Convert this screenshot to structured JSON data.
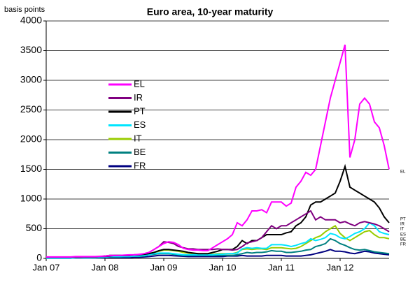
{
  "chart_data": {
    "type": "line",
    "title": "Euro area, 10-year maturity",
    "y_label": "basis points",
    "x": [
      "2007-01",
      "2007-02",
      "2007-03",
      "2007-04",
      "2007-05",
      "2007-06",
      "2007-07",
      "2007-08",
      "2007-09",
      "2007-10",
      "2007-11",
      "2007-12",
      "2008-01",
      "2008-02",
      "2008-03",
      "2008-04",
      "2008-05",
      "2008-06",
      "2008-07",
      "2008-08",
      "2008-09",
      "2008-10",
      "2008-11",
      "2008-12",
      "2009-01",
      "2009-02",
      "2009-03",
      "2009-04",
      "2009-05",
      "2009-06",
      "2009-07",
      "2009-08",
      "2009-09",
      "2009-10",
      "2009-11",
      "2009-12",
      "2010-01",
      "2010-02",
      "2010-03",
      "2010-04",
      "2010-05",
      "2010-06",
      "2010-07",
      "2010-08",
      "2010-09",
      "2010-10",
      "2010-11",
      "2010-12",
      "2011-01",
      "2011-02",
      "2011-03",
      "2011-04",
      "2011-05",
      "2011-06",
      "2011-07",
      "2011-08",
      "2011-09",
      "2011-10",
      "2011-11",
      "2011-12",
      "2012-01",
      "2012-02",
      "2012-03",
      "2012-04",
      "2012-05",
      "2012-06",
      "2012-07",
      "2012-08",
      "2012-09",
      "2012-10",
      "2012-11"
    ],
    "xlim": [
      "2007-01",
      "2012-11"
    ],
    "xticks": [
      {
        "value": "2007-01",
        "label": "Jan 07"
      },
      {
        "value": "2008-01",
        "label": "Jan 08"
      },
      {
        "value": "2009-01",
        "label": "Jan 09"
      },
      {
        "value": "2010-01",
        "label": "Jan 10"
      },
      {
        "value": "2011-01",
        "label": "Jan 11"
      },
      {
        "value": "2012-01",
        "label": "Jan 12"
      }
    ],
    "ylim": [
      0,
      4000
    ],
    "yticks": [
      0,
      500,
      1000,
      1500,
      2000,
      2500,
      3000,
      3500,
      4000
    ],
    "grid": true,
    "series": [
      {
        "name": "EL",
        "color": "#ff00ff",
        "values": [
          25,
          25,
          25,
          25,
          25,
          25,
          30,
          30,
          30,
          30,
          30,
          35,
          40,
          50,
          50,
          50,
          55,
          60,
          60,
          70,
          80,
          100,
          150,
          200,
          250,
          280,
          270,
          230,
          170,
          150,
          140,
          140,
          130,
          130,
          180,
          230,
          280,
          330,
          400,
          600,
          550,
          650,
          800,
          800,
          820,
          770,
          950,
          950,
          950,
          880,
          930,
          1200,
          1300,
          1450,
          1400,
          1500,
          1900,
          2300,
          2700,
          3000,
          3300,
          3600,
          1700,
          2000,
          2600,
          2700,
          2600,
          2300,
          2200,
          1900,
          1500
        ]
      },
      {
        "name": "IR",
        "color": "#800080",
        "values": [
          20,
          20,
          20,
          20,
          20,
          20,
          20,
          20,
          25,
          25,
          25,
          30,
          30,
          40,
          50,
          50,
          50,
          50,
          60,
          60,
          80,
          100,
          150,
          200,
          280,
          270,
          250,
          200,
          180,
          160,
          160,
          150,
          150,
          150,
          150,
          160,
          150,
          150,
          140,
          150,
          200,
          260,
          280,
          300,
          350,
          450,
          550,
          500,
          550,
          550,
          600,
          650,
          700,
          750,
          800,
          650,
          700,
          650,
          650,
          650,
          600,
          620,
          580,
          550,
          600,
          620,
          600,
          580,
          550,
          500,
          450
        ]
      },
      {
        "name": "PT",
        "color": "#000000",
        "values": [
          20,
          20,
          20,
          20,
          20,
          20,
          25,
          25,
          25,
          25,
          25,
          30,
          40,
          50,
          50,
          50,
          50,
          50,
          60,
          60,
          70,
          80,
          100,
          130,
          150,
          150,
          140,
          130,
          120,
          100,
          90,
          80,
          80,
          80,
          100,
          120,
          150,
          150,
          150,
          200,
          300,
          250,
          300,
          300,
          350,
          400,
          400,
          400,
          400,
          430,
          450,
          550,
          600,
          700,
          900,
          950,
          950,
          1000,
          1050,
          1100,
          1300,
          1550,
          1200,
          1150,
          1100,
          1050,
          1000,
          950,
          850,
          700,
          600
        ]
      },
      {
        "name": "ES",
        "color": "#00e5ff",
        "values": [
          5,
          5,
          5,
          5,
          5,
          5,
          10,
          10,
          10,
          10,
          10,
          15,
          20,
          30,
          30,
          30,
          30,
          30,
          40,
          40,
          50,
          60,
          80,
          90,
          90,
          90,
          80,
          70,
          60,
          60,
          60,
          60,
          60,
          60,
          60,
          70,
          70,
          80,
          80,
          90,
          160,
          180,
          170,
          180,
          170,
          170,
          230,
          230,
          230,
          220,
          200,
          220,
          250,
          270,
          330,
          300,
          320,
          350,
          420,
          400,
          350,
          330,
          370,
          420,
          450,
          500,
          600,
          550,
          450,
          420,
          400
        ]
      },
      {
        "name": "IT",
        "color": "#99cc00",
        "values": [
          20,
          20,
          20,
          20,
          20,
          20,
          25,
          25,
          25,
          25,
          25,
          30,
          35,
          40,
          40,
          40,
          40,
          40,
          50,
          50,
          60,
          80,
          100,
          120,
          140,
          140,
          130,
          120,
          100,
          90,
          80,
          80,
          70,
          70,
          70,
          80,
          80,
          80,
          80,
          100,
          150,
          160,
          150,
          160,
          160,
          150,
          180,
          180,
          180,
          170,
          160,
          170,
          200,
          250,
          300,
          350,
          380,
          450,
          500,
          550,
          420,
          350,
          300,
          350,
          400,
          450,
          470,
          400,
          350,
          350,
          330
        ]
      },
      {
        "name": "BE",
        "color": "#008080",
        "values": [
          5,
          5,
          5,
          5,
          5,
          5,
          10,
          10,
          10,
          10,
          15,
          15,
          20,
          25,
          25,
          25,
          30,
          30,
          35,
          35,
          40,
          60,
          70,
          80,
          80,
          80,
          70,
          60,
          50,
          50,
          50,
          50,
          50,
          50,
          50,
          50,
          50,
          50,
          50,
          60,
          80,
          100,
          90,
          100,
          100,
          110,
          130,
          120,
          120,
          100,
          100,
          110,
          120,
          140,
          150,
          200,
          220,
          250,
          330,
          300,
          250,
          220,
          180,
          150,
          140,
          150,
          130,
          110,
          100,
          90,
          80
        ]
      },
      {
        "name": "FR",
        "color": "#000080",
        "values": [
          5,
          5,
          5,
          5,
          5,
          5,
          8,
          8,
          8,
          8,
          10,
          10,
          10,
          15,
          15,
          15,
          15,
          15,
          20,
          20,
          25,
          30,
          40,
          50,
          50,
          50,
          45,
          40,
          35,
          30,
          30,
          30,
          30,
          30,
          30,
          30,
          30,
          40,
          40,
          40,
          50,
          40,
          40,
          40,
          40,
          50,
          50,
          50,
          50,
          40,
          40,
          40,
          40,
          50,
          60,
          80,
          100,
          120,
          150,
          120,
          120,
          110,
          90,
          80,
          100,
          120,
          110,
          90,
          80,
          70,
          60
        ]
      }
    ]
  }
}
